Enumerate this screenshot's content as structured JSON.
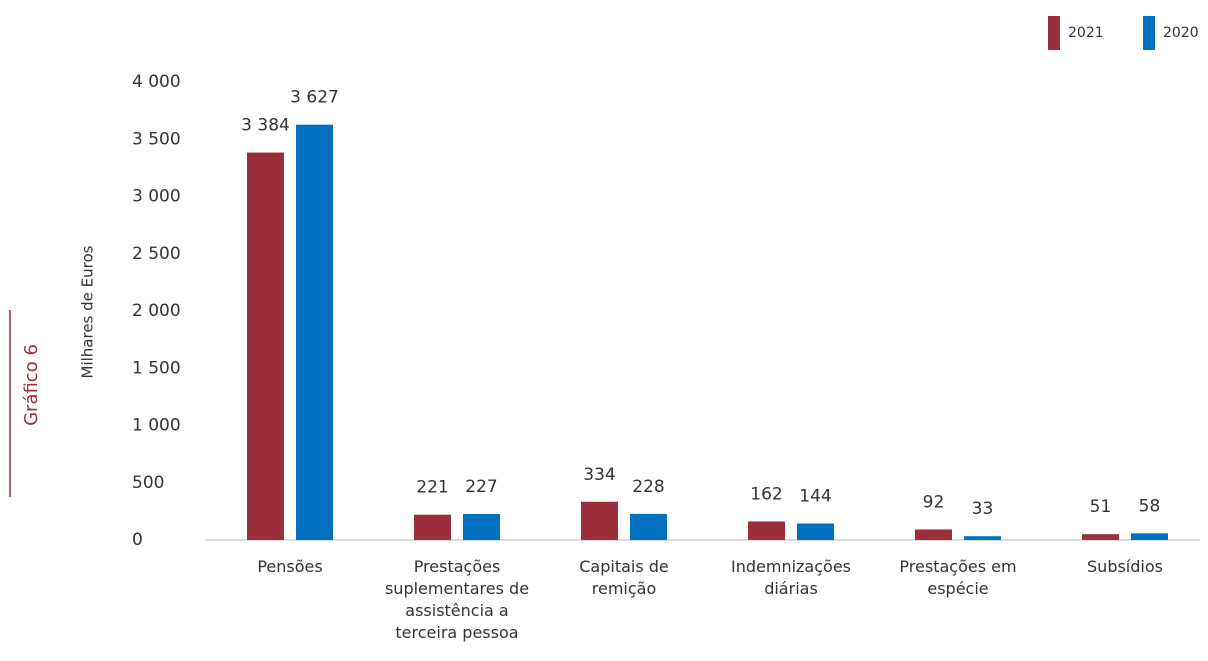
{
  "chart_data": {
    "type": "bar",
    "y_label": "Milhares de Euros",
    "side_label": "Gráfico 6",
    "categories": [
      "Pensões",
      "Prestações suplementares de assistência a terceira pessoa",
      "Capitais de remição",
      "Indemnizações diárias",
      "Prestações em espécie",
      "Subsídios"
    ],
    "series": [
      {
        "name": "2021",
        "color": "#9b2f3c",
        "values": [
          3384,
          221,
          334,
          162,
          92,
          51
        ],
        "value_labels": [
          "3 384",
          "221",
          "334",
          "162",
          "92",
          "51"
        ]
      },
      {
        "name": "2020",
        "color": "#0070c0",
        "values": [
          3627,
          227,
          228,
          144,
          33,
          58
        ],
        "value_labels": [
          "3 627",
          "227",
          "228",
          "144",
          "33",
          "58"
        ]
      }
    ],
    "ylim": [
      0,
      4000
    ],
    "yticks": [
      0,
      500,
      {
        "value": 1000,
        "label": "1 000"
      },
      {
        "value": 1500,
        "label": "1 500"
      },
      {
        "value": 2000,
        "label": "2 000"
      },
      {
        "value": 2500,
        "label": "2 500"
      },
      {
        "value": 3000,
        "label": "3 000"
      },
      {
        "value": 3500,
        "label": "3 500"
      },
      {
        "value": 4000,
        "label": "4 000"
      }
    ],
    "legend": "top-right"
  }
}
